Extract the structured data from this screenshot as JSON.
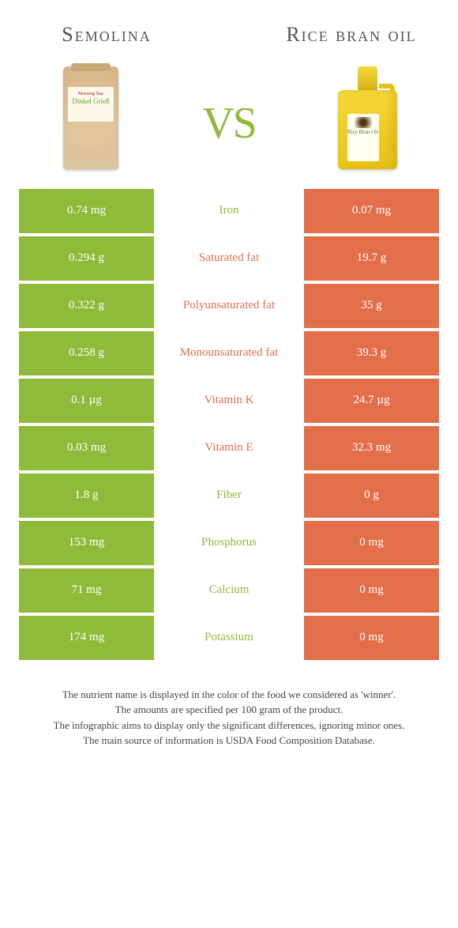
{
  "title_left": "Semolina",
  "title_right": "Rice bran oil",
  "vs": "vs",
  "colors": {
    "left": "#8fba3a",
    "right": "#e36f4a"
  },
  "semolina_bag_text": "Dinkel Grieß",
  "semolina_bag_brand": "Morning Star",
  "oil_label_text": "Rice Bran Oil",
  "rows": [
    {
      "left": "0.74 mg",
      "name": "Iron",
      "right": "0.07 mg",
      "winner": "left"
    },
    {
      "left": "0.294 g",
      "name": "Saturated fat",
      "right": "19.7 g",
      "winner": "right"
    },
    {
      "left": "0.322 g",
      "name": "Polyunsaturated fat",
      "right": "35 g",
      "winner": "right"
    },
    {
      "left": "0.258 g",
      "name": "Monounsaturated fat",
      "right": "39.3 g",
      "winner": "right"
    },
    {
      "left": "0.1 µg",
      "name": "Vitamin K",
      "right": "24.7 µg",
      "winner": "right"
    },
    {
      "left": "0.03 mg",
      "name": "Vitamin E",
      "right": "32.3 mg",
      "winner": "right"
    },
    {
      "left": "1.8 g",
      "name": "Fiber",
      "right": "0 g",
      "winner": "left"
    },
    {
      "left": "153 mg",
      "name": "Phosphorus",
      "right": "0 mg",
      "winner": "left"
    },
    {
      "left": "71 mg",
      "name": "Calcium",
      "right": "0 mg",
      "winner": "left"
    },
    {
      "left": "174 mg",
      "name": "Potassium",
      "right": "0 mg",
      "winner": "left"
    }
  ],
  "footer": [
    "The nutrient name is displayed in the color of the food we considered as 'winner'.",
    "The amounts are specified per 100 gram of the product.",
    "The infographic aims to display only the significant differences, ignoring minor ones.",
    "The main source of information is USDA Food Composition Database."
  ]
}
